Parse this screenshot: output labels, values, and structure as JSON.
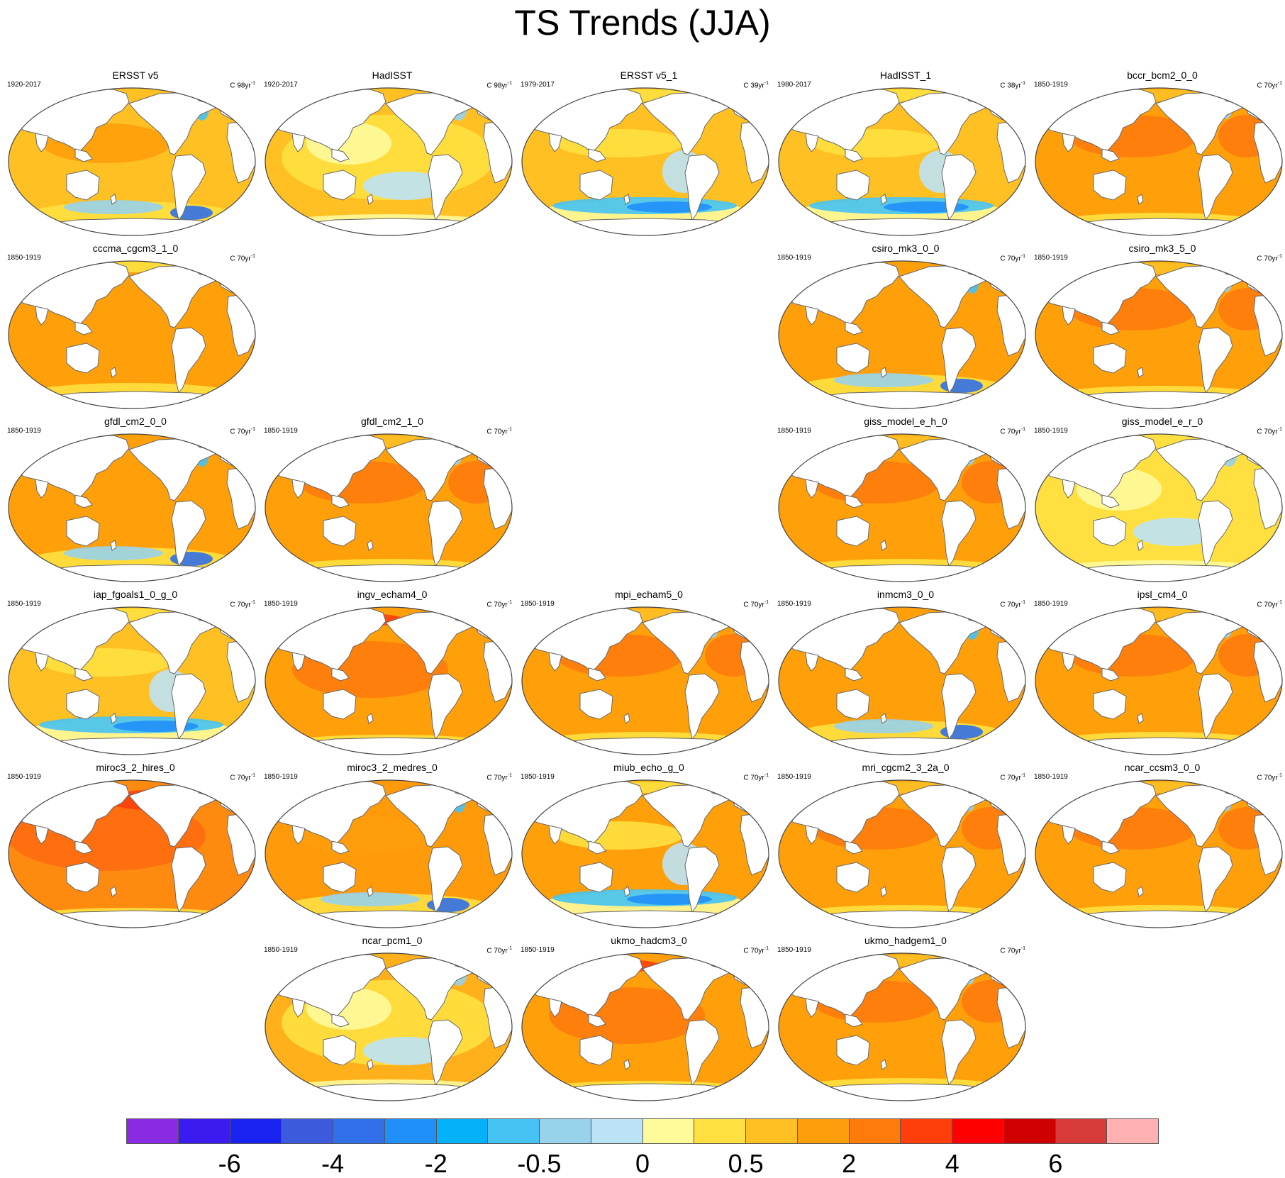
{
  "title": "TS Trends (JJA)",
  "colorbar": {
    "colors": [
      "#8a2be2",
      "#3a1cf0",
      "#1a22f0",
      "#3b5bdc",
      "#3170e8",
      "#2090f8",
      "#05b2fa",
      "#46c3f3",
      "#98d2eb",
      "#bce2f5",
      "#fffa9a",
      "#ffe040",
      "#ffc023",
      "#ff9e0a",
      "#ff7b0c",
      "#ff3f0b",
      "#ff0000",
      "#d00000",
      "#d83a3a",
      "#ffb0b0"
    ],
    "tick_labels": [
      "-6",
      "-4",
      "-2",
      "-0.5",
      "0",
      "0.5",
      "2",
      "4",
      "6"
    ],
    "tick_boundaries": [
      2,
      4,
      6,
      8,
      10,
      12,
      14,
      16,
      18
    ]
  },
  "panels": [
    {
      "name": "ERSST v5",
      "period": "1920-2017",
      "units": "C 98yr",
      "units_sup": "-1",
      "row": 0,
      "col": 0,
      "style": "cool_south",
      "ocean": "#ffc023"
    },
    {
      "name": "HadISST",
      "period": "1920-2017",
      "units": "C 98yr",
      "units_sup": "-1",
      "row": 0,
      "col": 1,
      "style": "mixed_yellow",
      "ocean": "#ffc023"
    },
    {
      "name": "ERSST v5_1",
      "period": "1979-2017",
      "units": "C 39yr",
      "units_sup": "-1",
      "row": 0,
      "col": 2,
      "style": "blue_south",
      "ocean": "#ffc023"
    },
    {
      "name": "HadISST_1",
      "period": "1980-2017",
      "units": "C 38yr",
      "units_sup": "-1",
      "row": 0,
      "col": 3,
      "style": "blue_south",
      "ocean": "#ffc023"
    },
    {
      "name": "bccr_bcm2_0_0",
      "period": "1850-1919",
      "units": "C 70yr",
      "units_sup": "-1",
      "row": 0,
      "col": 4,
      "style": "warm",
      "ocean": "#ffa00a"
    },
    {
      "name": "cccma_cgcm3_1_0",
      "period": "1850-1919",
      "units": "C 70yr",
      "units_sup": "-1",
      "row": 1,
      "col": 0,
      "style": "uniform",
      "ocean": "#ffa00a"
    },
    {
      "name": "csiro_mk3_0_0",
      "period": "1850-1919",
      "units": "C 70yr",
      "units_sup": "-1",
      "row": 1,
      "col": 3,
      "style": "cool_south",
      "ocean": "#ffa00a"
    },
    {
      "name": "csiro_mk3_5_0",
      "period": "1850-1919",
      "units": "C 70yr",
      "units_sup": "-1",
      "row": 1,
      "col": 4,
      "style": "warm",
      "ocean": "#ffa00a"
    },
    {
      "name": "gfdl_cm2_0_0",
      "period": "1850-1919",
      "units": "C 70yr",
      "units_sup": "-1",
      "row": 2,
      "col": 0,
      "style": "cool_south",
      "ocean": "#ffa00a"
    },
    {
      "name": "gfdl_cm2_1_0",
      "period": "1850-1919",
      "units": "C 70yr",
      "units_sup": "-1",
      "row": 2,
      "col": 1,
      "style": "warm",
      "ocean": "#ffa00a"
    },
    {
      "name": "giss_model_e_h_0",
      "period": "1850-1919",
      "units": "C 70yr",
      "units_sup": "-1",
      "row": 2,
      "col": 3,
      "style": "warm",
      "ocean": "#ffa00a"
    },
    {
      "name": "giss_model_e_r_0",
      "period": "1850-1919",
      "units": "C 70yr",
      "units_sup": "-1",
      "row": 2,
      "col": 4,
      "style": "mixed_yellow",
      "ocean": "#ffe040"
    },
    {
      "name": "iap_fgoals1_0_g_0",
      "period": "1850-1919",
      "units": "C 70yr",
      "units_sup": "-1",
      "row": 3,
      "col": 0,
      "style": "blue_south",
      "ocean": "#ffc023"
    },
    {
      "name": "ingv_echam4_0",
      "period": "1850-1919",
      "units": "C 70yr",
      "units_sup": "-1",
      "row": 3,
      "col": 1,
      "style": "hot_north",
      "ocean": "#ffa00a"
    },
    {
      "name": "mpi_echam5_0",
      "period": "1850-1919",
      "units": "C 70yr",
      "units_sup": "-1",
      "row": 3,
      "col": 2,
      "style": "warm",
      "ocean": "#ffa00a"
    },
    {
      "name": "inmcm3_0_0",
      "period": "1850-1919",
      "units": "C 70yr",
      "units_sup": "-1",
      "row": 3,
      "col": 3,
      "style": "cool_south",
      "ocean": "#ffa00a"
    },
    {
      "name": "ipsl_cm4_0",
      "period": "1850-1919",
      "units": "C 70yr",
      "units_sup": "-1",
      "row": 3,
      "col": 4,
      "style": "warm",
      "ocean": "#ffa00a"
    },
    {
      "name": "miroc3_2_hires_0",
      "period": "1850-1919",
      "units": "C 70yr",
      "units_sup": "-1",
      "row": 4,
      "col": 0,
      "style": "hot",
      "ocean": "#ff8a10"
    },
    {
      "name": "miroc3_2_medres_0",
      "period": "1850-1919",
      "units": "C 70yr",
      "units_sup": "-1",
      "row": 4,
      "col": 1,
      "style": "cool_south",
      "ocean": "#ff9a0a"
    },
    {
      "name": "miub_echo_g_0",
      "period": "1850-1919",
      "units": "C 70yr",
      "units_sup": "-1",
      "row": 4,
      "col": 2,
      "style": "blue_south",
      "ocean": "#ffa00a"
    },
    {
      "name": "mri_cgcm2_3_2a_0",
      "period": "1850-1919",
      "units": "C 70yr",
      "units_sup": "-1",
      "row": 4,
      "col": 3,
      "style": "warm",
      "ocean": "#ffa00a"
    },
    {
      "name": "ncar_ccsm3_0_0",
      "period": "1850-1919",
      "units": "C 70yr",
      "units_sup": "-1",
      "row": 4,
      "col": 4,
      "style": "warm",
      "ocean": "#ffa00a"
    },
    {
      "name": "ncar_pcm1_0",
      "period": "1850-1919",
      "units": "C 70yr",
      "units_sup": "-1",
      "row": 5,
      "col": 1,
      "style": "mixed_yellow",
      "ocean": "#ffb01a"
    },
    {
      "name": "ukmo_hadcm3_0",
      "period": "1850-1919",
      "units": "C 70yr",
      "units_sup": "-1",
      "row": 5,
      "col": 2,
      "style": "hot_north",
      "ocean": "#ffa00a"
    },
    {
      "name": "ukmo_hadgem1_0",
      "period": "1850-1919",
      "units": "C 70yr",
      "units_sup": "-1",
      "row": 5,
      "col": 3,
      "style": "warm",
      "ocean": "#ffa00a"
    }
  ]
}
